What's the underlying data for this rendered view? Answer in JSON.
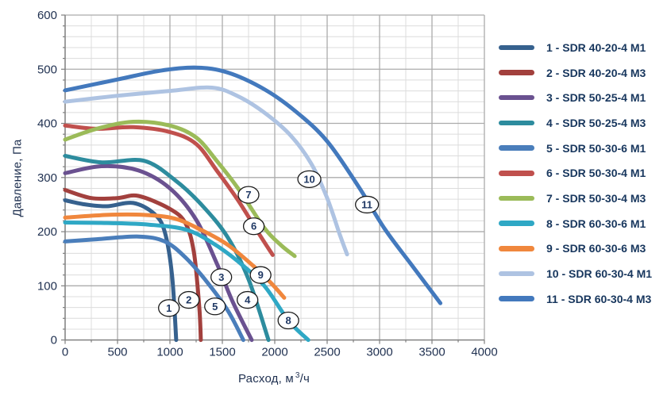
{
  "chart_data": {
    "type": "line",
    "title": "",
    "xlabel": {
      "pre": "Расход, м",
      "sup": "3",
      "post": "/ч"
    },
    "ylabel": "Давление, Па",
    "xlim": [
      0,
      4000
    ],
    "ylim": [
      0,
      600
    ],
    "xticks": [
      0,
      500,
      1000,
      1500,
      2000,
      2500,
      3000,
      3500,
      4000
    ],
    "yticks": [
      0,
      100,
      200,
      300,
      400,
      500,
      600
    ],
    "x_minor_step": 250,
    "y_minor_step": 20,
    "grid": "major+minor",
    "legend_position": "right",
    "colors": {
      "grid_minor": "#DCDCDC",
      "grid_major": "#ABABAB",
      "axis_line": "#7F7F7F",
      "tick_text": "#1F3050",
      "legend_text": "#17365D",
      "marker_fill": "#FFFFFF",
      "marker_stroke": "#1A1A1A",
      "marker_digit": "#1F3864"
    },
    "series": [
      {
        "num": "1",
        "name": "SDR 40-20-4 M1",
        "color": "#36618E",
        "label_at": [
          990,
          59
        ],
        "points": [
          [
            0,
            258
          ],
          [
            200,
            250
          ],
          [
            400,
            247
          ],
          [
            650,
            253
          ],
          [
            850,
            233
          ],
          [
            950,
            200
          ],
          [
            1020,
            120
          ],
          [
            1060,
            0
          ]
        ]
      },
      {
        "num": "2",
        "name": "SDR 40-20-4 M3",
        "color": "#A2403D",
        "label_at": [
          1180,
          74
        ],
        "points": [
          [
            0,
            277
          ],
          [
            250,
            262
          ],
          [
            500,
            262
          ],
          [
            700,
            266
          ],
          [
            1000,
            242
          ],
          [
            1150,
            215
          ],
          [
            1230,
            160
          ],
          [
            1280,
            60
          ],
          [
            1295,
            0
          ]
        ]
      },
      {
        "num": "3",
        "name": "SDR 50-25-4 M1",
        "color": "#6A5190",
        "label_at": [
          1490,
          116
        ],
        "points": [
          [
            0,
            308
          ],
          [
            350,
            321
          ],
          [
            700,
            313
          ],
          [
            1000,
            280
          ],
          [
            1250,
            222
          ],
          [
            1450,
            140
          ],
          [
            1600,
            70
          ],
          [
            1780,
            0
          ]
        ]
      },
      {
        "num": "4",
        "name": "SDR 50-25-4 M3",
        "color": "#2D8C9E",
        "label_at": [
          1740,
          74
        ],
        "points": [
          [
            0,
            340
          ],
          [
            350,
            328
          ],
          [
            750,
            331
          ],
          [
            1050,
            295
          ],
          [
            1300,
            250
          ],
          [
            1550,
            190
          ],
          [
            1750,
            112
          ],
          [
            1940,
            0
          ]
        ]
      },
      {
        "num": "5",
        "name": "SDR 50-30-6 M1",
        "color": "#4A7EBB",
        "label_at": [
          1430,
          62
        ],
        "points": [
          [
            0,
            182
          ],
          [
            300,
            186
          ],
          [
            700,
            191
          ],
          [
            950,
            182
          ],
          [
            1150,
            152
          ],
          [
            1350,
            108
          ],
          [
            1550,
            55
          ],
          [
            1700,
            0
          ]
        ]
      },
      {
        "num": "6",
        "name": "SDR 50-30-4 M1",
        "color": "#C0504D",
        "label_at": [
          1800,
          210
        ],
        "points": [
          [
            0,
            396
          ],
          [
            300,
            390
          ],
          [
            650,
            393
          ],
          [
            1000,
            384
          ],
          [
            1250,
            362
          ],
          [
            1450,
            312
          ],
          [
            1650,
            258
          ],
          [
            1850,
            196
          ],
          [
            1980,
            157
          ]
        ]
      },
      {
        "num": "7",
        "name": "SDR 50-30-4 M3",
        "color": "#9BBB59",
        "label_at": [
          1750,
          268
        ],
        "points": [
          [
            0,
            370
          ],
          [
            300,
            390
          ],
          [
            650,
            403
          ],
          [
            1000,
            396
          ],
          [
            1250,
            374
          ],
          [
            1450,
            330
          ],
          [
            1650,
            280
          ],
          [
            1900,
            207
          ],
          [
            2060,
            175
          ],
          [
            2190,
            155
          ]
        ]
      },
      {
        "num": "8",
        "name": "SDR 60-30-6 M1",
        "color": "#2FA8C5",
        "label_at": [
          2130,
          36
        ],
        "points": [
          [
            0,
            217
          ],
          [
            400,
            216
          ],
          [
            800,
            213
          ],
          [
            1150,
            204
          ],
          [
            1400,
            180
          ],
          [
            1650,
            145
          ],
          [
            1900,
            100
          ],
          [
            2130,
            36
          ],
          [
            2320,
            0
          ]
        ]
      },
      {
        "num": "9",
        "name": "SDR 60-30-6 M3",
        "color": "#F0873D",
        "label_at": [
          1865,
          120
        ],
        "points": [
          [
            0,
            226
          ],
          [
            400,
            231
          ],
          [
            750,
            231
          ],
          [
            1050,
            224
          ],
          [
            1300,
            203
          ],
          [
            1550,
            176
          ],
          [
            1800,
            136
          ],
          [
            1980,
            102
          ],
          [
            2090,
            78
          ]
        ]
      },
      {
        "num": "10",
        "name": "SDR 60-30-4 M1",
        "color": "#AEC3E2",
        "label_at": [
          2330,
          297
        ],
        "points": [
          [
            0,
            440
          ],
          [
            500,
            451
          ],
          [
            1000,
            460
          ],
          [
            1400,
            466
          ],
          [
            1650,
            450
          ],
          [
            1900,
            420
          ],
          [
            2150,
            378
          ],
          [
            2350,
            325
          ],
          [
            2500,
            262
          ],
          [
            2620,
            195
          ],
          [
            2690,
            158
          ]
        ]
      },
      {
        "num": "11",
        "name": "SDR 60-30-4 M3",
        "color": "#4379BD",
        "label_at": [
          2880,
          250
        ],
        "points": [
          [
            0,
            461
          ],
          [
            500,
            481
          ],
          [
            900,
            497
          ],
          [
            1250,
            503
          ],
          [
            1550,
            494
          ],
          [
            1900,
            463
          ],
          [
            2200,
            422
          ],
          [
            2500,
            367
          ],
          [
            2800,
            283
          ],
          [
            3050,
            205
          ],
          [
            3300,
            140
          ],
          [
            3580,
            68
          ]
        ]
      }
    ]
  }
}
